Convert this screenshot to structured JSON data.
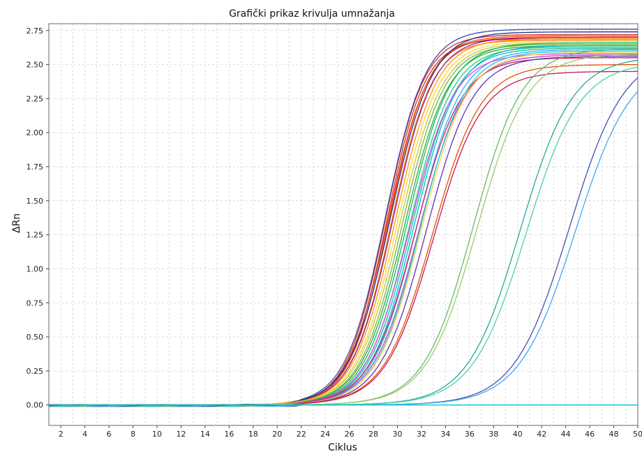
{
  "chart_data": {
    "type": "line",
    "title": "Grafički prikaz krivulja umnažanja",
    "xlabel": "Ciklus",
    "ylabel": "ΔRn",
    "xlim": [
      1,
      50
    ],
    "ylim": [
      -0.15,
      2.8
    ],
    "xticks": [
      2,
      4,
      6,
      8,
      10,
      12,
      14,
      16,
      18,
      20,
      22,
      24,
      26,
      28,
      30,
      32,
      34,
      36,
      38,
      40,
      42,
      44,
      46,
      48,
      50
    ],
    "xtick_labels": [
      "2",
      "4",
      "6",
      "8",
      "10",
      "12",
      "14",
      "16",
      "18",
      "20",
      "22",
      "24",
      "26",
      "28",
      "30",
      "32",
      "34",
      "36",
      "38",
      "40",
      "42",
      "44",
      "46",
      "48",
      "50"
    ],
    "yticks": [
      0,
      0.25,
      0.5,
      0.75,
      1.0,
      1.25,
      1.5,
      1.75,
      2.0,
      2.25,
      2.5,
      2.75
    ],
    "ytick_labels": [
      "0.00",
      "0.25",
      "0.50",
      "0.75",
      "1.00",
      "1.25",
      "1.50",
      "1.75",
      "2.00",
      "2.25",
      "2.50",
      "2.75"
    ],
    "grid": true,
    "series": [
      {
        "color": "#d62728",
        "midpoint": 29.0,
        "slope": 0.62,
        "plateau": 2.72
      },
      {
        "color": "#e8341c",
        "midpoint": 29.2,
        "slope": 0.6,
        "plateau": 2.7
      },
      {
        "color": "#ff4500",
        "midpoint": 29.3,
        "slope": 0.61,
        "plateau": 2.71
      },
      {
        "color": "#c0392b",
        "midpoint": 29.1,
        "slope": 0.63,
        "plateau": 2.69
      },
      {
        "color": "#ff6f00",
        "midpoint": 29.5,
        "slope": 0.6,
        "plateau": 2.68
      },
      {
        "color": "#3949ab",
        "midpoint": 29.0,
        "slope": 0.6,
        "plateau": 2.76
      },
      {
        "color": "#1e3a8a",
        "midpoint": 29.4,
        "slope": 0.58,
        "plateau": 2.74
      },
      {
        "color": "#8e24aa",
        "midpoint": 29.6,
        "slope": 0.59,
        "plateau": 2.7
      },
      {
        "color": "#ff9800",
        "midpoint": 29.8,
        "slope": 0.58,
        "plateau": 2.69
      },
      {
        "color": "#fdd835",
        "midpoint": 30.0,
        "slope": 0.58,
        "plateau": 2.67
      },
      {
        "color": "#c0ca33",
        "midpoint": 30.2,
        "slope": 0.57,
        "plateau": 2.66
      },
      {
        "color": "#7cb342",
        "midpoint": 30.4,
        "slope": 0.57,
        "plateau": 2.65
      },
      {
        "color": "#43a047",
        "midpoint": 30.6,
        "slope": 0.56,
        "plateau": 2.64
      },
      {
        "color": "#00c853",
        "midpoint": 30.8,
        "slope": 0.56,
        "plateau": 2.66
      },
      {
        "color": "#2ecc71",
        "midpoint": 31.0,
        "slope": 0.56,
        "plateau": 2.63
      },
      {
        "color": "#1abc9c",
        "midpoint": 31.2,
        "slope": 0.55,
        "plateau": 2.62
      },
      {
        "color": "#00bcd4",
        "midpoint": 31.4,
        "slope": 0.55,
        "plateau": 2.64
      },
      {
        "color": "#29b6f6",
        "midpoint": 31.6,
        "slope": 0.54,
        "plateau": 2.61
      },
      {
        "color": "#e040fb",
        "midpoint": 31.0,
        "slope": 0.55,
        "plateau": 2.58
      },
      {
        "color": "#d81b60",
        "midpoint": 31.5,
        "slope": 0.53,
        "plateau": 2.55
      },
      {
        "color": "#ab47bc",
        "midpoint": 31.8,
        "slope": 0.53,
        "plateau": 2.57
      },
      {
        "color": "#26c6da",
        "midpoint": 31.9,
        "slope": 0.54,
        "plateau": 2.6
      },
      {
        "color": "#f4d03f",
        "midpoint": 32.0,
        "slope": 0.53,
        "plateau": 2.59
      },
      {
        "color": "#5e35b1",
        "midpoint": 32.4,
        "slope": 0.52,
        "plateau": 2.56
      },
      {
        "color": "#e65100",
        "midpoint": 32.9,
        "slope": 0.5,
        "plateau": 2.5
      },
      {
        "color": "#c2185b",
        "midpoint": 33.0,
        "slope": 0.5,
        "plateau": 2.45
      },
      {
        "color": "#66bb6a",
        "midpoint": 36.3,
        "slope": 0.49,
        "plateau": 2.62
      },
      {
        "color": "#9ccc65",
        "midpoint": 36.6,
        "slope": 0.48,
        "plateau": 2.58
      },
      {
        "color": "#26a69a",
        "midpoint": 40.2,
        "slope": 0.46,
        "plateau": 2.56
      },
      {
        "color": "#4dd0a5",
        "midpoint": 40.7,
        "slope": 0.45,
        "plateau": 2.52
      },
      {
        "color": "#3f51b5",
        "midpoint": 44.3,
        "slope": 0.44,
        "plateau": 2.6
      },
      {
        "color": "#42a5f5",
        "midpoint": 44.8,
        "slope": 0.43,
        "plateau": 2.55
      },
      {
        "color": "#00c8d0",
        "midpoint": null,
        "slope": 0,
        "plateau": 0
      }
    ]
  }
}
